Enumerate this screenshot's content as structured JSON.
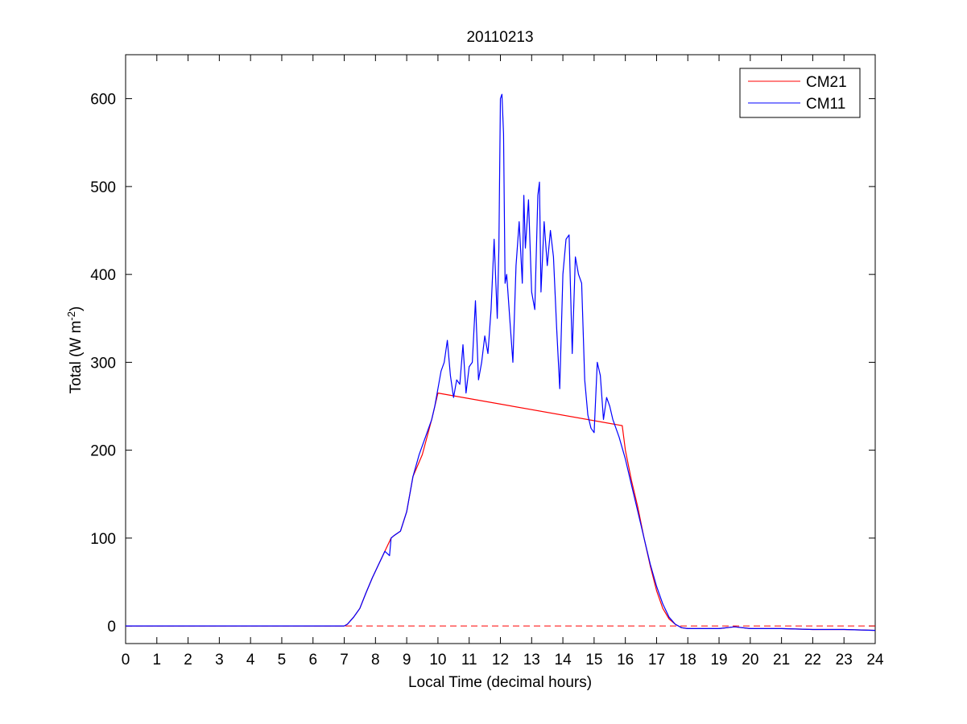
{
  "chart_data": {
    "type": "line",
    "title": "20110213",
    "xlabel": "Local Time (decimal hours)",
    "ylabel": "Total (W m",
    "ylabel_superscript": "-2",
    "ylabel_suffix": ")",
    "xlim": [
      0,
      24
    ],
    "ylim": [
      -20,
      650
    ],
    "xticks": [
      0,
      1,
      2,
      3,
      4,
      5,
      6,
      7,
      8,
      9,
      10,
      11,
      12,
      13,
      14,
      15,
      16,
      17,
      18,
      19,
      20,
      21,
      22,
      23,
      24
    ],
    "yticks": [
      0,
      100,
      200,
      300,
      400,
      500,
      600
    ],
    "grid": false,
    "legend_position": "top-right",
    "reference_line": {
      "y": 0,
      "color": "#ff0000",
      "style": "dashed"
    },
    "series": [
      {
        "name": "CM21",
        "color": "#ff0000",
        "x": [
          0,
          7.0,
          7.1,
          7.3,
          7.5,
          7.7,
          7.9,
          8.1,
          8.3,
          8.5,
          8.6,
          8.8,
          9.0,
          9.2,
          9.5,
          9.8,
          10.0,
          15.9,
          16.0,
          16.2,
          16.4,
          16.6,
          16.8,
          17.0,
          17.2,
          17.4,
          17.6,
          17.8,
          18.0,
          19.0,
          19.5,
          20.0,
          21.0,
          22.0,
          23.0,
          24.0
        ],
        "y": [
          0,
          0,
          2,
          10,
          20,
          38,
          55,
          70,
          85,
          100,
          103,
          108,
          130,
          170,
          195,
          235,
          265,
          228,
          200,
          165,
          135,
          100,
          68,
          40,
          20,
          8,
          2,
          -2,
          -3,
          -3,
          -1,
          -3,
          -3,
          -4,
          -4,
          -5
        ]
      },
      {
        "name": "CM11",
        "color": "#0000ff",
        "x": [
          0,
          7.0,
          7.1,
          7.3,
          7.5,
          7.7,
          7.9,
          8.1,
          8.3,
          8.45,
          8.5,
          8.6,
          8.8,
          9.0,
          9.2,
          9.4,
          9.6,
          9.8,
          9.9,
          10.0,
          10.1,
          10.2,
          10.3,
          10.4,
          10.5,
          10.6,
          10.7,
          10.8,
          10.9,
          11.0,
          11.1,
          11.2,
          11.3,
          11.4,
          11.5,
          11.6,
          11.7,
          11.8,
          11.9,
          11.95,
          12.0,
          12.05,
          12.1,
          12.15,
          12.2,
          12.3,
          12.4,
          12.5,
          12.6,
          12.7,
          12.75,
          12.8,
          12.9,
          13.0,
          13.1,
          13.2,
          13.25,
          13.3,
          13.4,
          13.5,
          13.6,
          13.7,
          13.8,
          13.9,
          14.0,
          14.1,
          14.2,
          14.3,
          14.4,
          14.5,
          14.6,
          14.7,
          14.8,
          14.9,
          15.0,
          15.1,
          15.2,
          15.3,
          15.4,
          15.5,
          15.6,
          15.7,
          15.8,
          16.0,
          16.2,
          16.4,
          16.6,
          16.8,
          17.0,
          17.2,
          17.4,
          17.6,
          17.8,
          18.0,
          19.0,
          19.5,
          20.0,
          21.0,
          22.0,
          23.0,
          24.0
        ],
        "y": [
          0,
          0,
          2,
          10,
          20,
          38,
          55,
          70,
          85,
          80,
          100,
          103,
          108,
          130,
          170,
          195,
          215,
          235,
          250,
          270,
          290,
          300,
          325,
          285,
          260,
          280,
          275,
          320,
          265,
          295,
          300,
          370,
          280,
          300,
          330,
          310,
          360,
          440,
          350,
          430,
          600,
          605,
          560,
          390,
          400,
          350,
          300,
          410,
          460,
          390,
          490,
          430,
          485,
          380,
          360,
          490,
          505,
          380,
          460,
          410,
          450,
          420,
          340,
          270,
          400,
          440,
          445,
          310,
          420,
          400,
          390,
          280,
          240,
          225,
          220,
          300,
          285,
          235,
          260,
          250,
          235,
          225,
          215,
          190,
          160,
          130,
          100,
          70,
          45,
          25,
          10,
          2,
          -2,
          -3,
          -3,
          -1,
          -3,
          -3,
          -4,
          -4,
          -5
        ]
      }
    ]
  }
}
